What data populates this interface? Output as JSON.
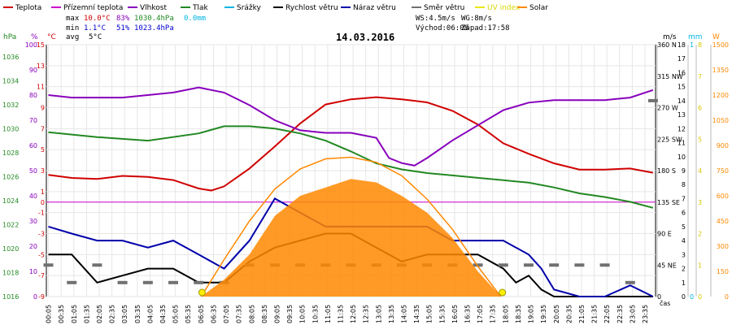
{
  "chart_data": {
    "type": "line",
    "title": "14.03.2016",
    "xlabel": "čas",
    "x_tick_labels": [
      "00:05",
      "00:35",
      "01:05",
      "01:35",
      "02:05",
      "02:35",
      "03:05",
      "03:35",
      "04:05",
      "04:35",
      "05:05",
      "05:35",
      "06:05",
      "06:35",
      "07:05",
      "07:35",
      "08:05",
      "08:35",
      "09:05",
      "09:35",
      "10:05",
      "10:35",
      "11:05",
      "11:35",
      "12:05",
      "12:35",
      "13:05",
      "13:35",
      "14:05",
      "14:35",
      "15:05",
      "15:35",
      "16:05",
      "16:35",
      "17:05",
      "17:35",
      "18:05",
      "18:35",
      "19:05",
      "19:35",
      "20:05",
      "20:35",
      "21:05",
      "21:35",
      "22:05",
      "22:35",
      "23:05",
      "23:35"
    ],
    "legend": [
      {
        "name": "Teplota",
        "color": "#d00000"
      },
      {
        "name": "Přízemní teplota",
        "color": "#cc00cc"
      },
      {
        "name": "Vlhkost",
        "color": "#8800bb"
      },
      {
        "name": "Tlak",
        "color": "#228822"
      },
      {
        "name": "Srážky",
        "color": "#00b4e0"
      },
      {
        "name": "Rychlost větru",
        "color": "#000000"
      },
      {
        "name": "Náraz větru",
        "color": "#0000aa"
      },
      {
        "name": "Směr větru",
        "color": "#707070"
      },
      {
        "name": "UV index",
        "color": "#e8e800"
      },
      {
        "name": "Solar",
        "color": "#ff8800"
      }
    ],
    "stats": {
      "max": {
        "label": "max",
        "temp": "10.0°C",
        "hum": "83%",
        "press": "1030.4hPa",
        "rain": "0.0mm"
      },
      "min": {
        "label": "min",
        "temp": "1.1°C",
        "hum": "51%",
        "press": "1023.4hPa"
      },
      "avg": {
        "label": "avg",
        "temp": "5°C"
      }
    },
    "wind_info": {
      "ws": "WS:4.5m/s",
      "wg": "WG:8m/s",
      "sunrise": "Východ:06:08",
      "sunset": "Západ:17:58"
    },
    "axes": {
      "hpa": {
        "unit": "hPa",
        "ticks": [
          "1036",
          "1034",
          "1032",
          "1030",
          "1028",
          "1026",
          "1024",
          "1022",
          "1020",
          "1018",
          "1016"
        ],
        "range": [
          1016,
          1037
        ]
      },
      "humidity": {
        "unit": "%",
        "ticks": [
          "100",
          "90",
          "80",
          "70",
          "60",
          "50",
          "40",
          "30",
          "20",
          "10",
          "0"
        ],
        "range": [
          0,
          100
        ]
      },
      "temp": {
        "unit": "°C",
        "ticks": [
          "15",
          "13",
          "11",
          "9",
          "7",
          "5",
          "3",
          "1",
          "0",
          "-1",
          "-3",
          "-5",
          "-7",
          "-9"
        ],
        "range": [
          -9,
          15
        ]
      },
      "direction": {
        "ticks": [
          "360 N",
          "315 NW",
          "270 W",
          "225 SW",
          "180 S",
          "135 SE",
          "90 E",
          "45 NE",
          "0"
        ],
        "range": [
          0,
          360
        ]
      },
      "speed": {
        "unit": "m/s",
        "ticks": [
          "18",
          "17",
          "16",
          "15",
          "14",
          "13",
          "12",
          "11",
          "10",
          "9",
          "8",
          "7",
          "6",
          "5",
          "4",
          "3",
          "2",
          "1",
          "0"
        ],
        "range": [
          0,
          18
        ]
      },
      "rain": {
        "unit": "mm",
        "ticks": [
          "1",
          "0"
        ],
        "range": [
          0,
          1
        ]
      },
      "uv": {
        "unit": "",
        "ticks": [
          "8",
          "7",
          "6",
          "5",
          "4",
          "3",
          "2",
          "1",
          "0"
        ],
        "range": [
          0,
          8
        ]
      },
      "solar": {
        "unit": "W",
        "ticks": [
          "1500",
          "1350",
          "1200",
          "1050",
          "900",
          "750",
          "600",
          "450",
          "300",
          "150",
          "0"
        ],
        "range": [
          0,
          1500
        ]
      }
    },
    "series": [
      {
        "name": "Teplota",
        "unit": "°C",
        "color": "#d00000",
        "x": [
          0.08,
          1,
          2,
          3,
          4,
          5,
          6,
          6.5,
          7,
          8,
          9,
          10,
          11,
          12,
          13,
          14,
          15,
          16,
          17,
          18,
          19,
          20,
          21,
          22,
          23,
          23.9
        ],
        "values": [
          2.6,
          2.3,
          2.2,
          2.5,
          2.4,
          2.1,
          1.3,
          1.1,
          1.5,
          3.2,
          5.3,
          7.5,
          9.3,
          9.8,
          10.0,
          9.8,
          9.5,
          8.7,
          7.4,
          5.6,
          4.6,
          3.7,
          3.1,
          3.1,
          3.2,
          2.8
        ]
      },
      {
        "name": "Vlhkost",
        "unit": "%",
        "color": "#8800bb",
        "x": [
          0.08,
          1,
          2,
          3,
          4,
          5,
          6,
          7,
          8,
          9,
          10,
          11,
          12,
          13,
          13.5,
          14,
          14.5,
          15,
          16,
          17,
          18,
          19,
          20,
          21,
          22,
          23,
          23.9
        ],
        "values": [
          80,
          79,
          79,
          79,
          80,
          81,
          83,
          81,
          76,
          70,
          66,
          65,
          65,
          63,
          55,
          53,
          52,
          55,
          62,
          68,
          74,
          77,
          78,
          78,
          78,
          79,
          82
        ]
      },
      {
        "name": "Tlak",
        "unit": "hPa",
        "color": "#228822",
        "x": [
          0.08,
          2,
          4,
          6,
          7,
          8,
          9,
          10,
          11,
          12,
          13,
          14,
          15,
          16,
          17,
          18,
          19,
          20,
          21,
          22,
          23,
          23.9
        ],
        "values": [
          1029.7,
          1029.3,
          1029.0,
          1029.6,
          1030.2,
          1030.2,
          1030.0,
          1029.6,
          1029.0,
          1028.1,
          1027.1,
          1026.6,
          1026.3,
          1026.1,
          1025.9,
          1025.7,
          1025.5,
          1025.1,
          1024.6,
          1024.3,
          1023.9,
          1023.4
        ]
      },
      {
        "name": "Rychlost větru",
        "unit": "m/s",
        "color": "#000000",
        "x": [
          0.08,
          1,
          2,
          3,
          4,
          5,
          6,
          6.5,
          7,
          8,
          9,
          10,
          11,
          12,
          13,
          14,
          15,
          16,
          17,
          18,
          18.5,
          19,
          19.5,
          20,
          20.5,
          21,
          22,
          23,
          23.9
        ],
        "values": [
          3,
          3,
          1,
          1.5,
          2,
          2,
          1,
          1,
          1,
          2.5,
          3.5,
          4,
          4.5,
          4.5,
          3.5,
          2.5,
          3,
          3,
          3,
          2,
          1,
          1.5,
          0.5,
          0,
          0,
          0,
          0,
          0,
          0
        ]
      },
      {
        "name": "Náraz větru",
        "unit": "m/s",
        "color": "#0000aa",
        "x": [
          0.08,
          1,
          2,
          3,
          4,
          5,
          6,
          7,
          8,
          9,
          10,
          11,
          12,
          13,
          14,
          15,
          16,
          17,
          18,
          19,
          19.5,
          20,
          21,
          22,
          23,
          23.9
        ],
        "values": [
          5,
          4.5,
          4,
          4,
          3.5,
          4,
          3,
          2,
          4,
          7,
          6,
          5,
          5,
          5,
          5,
          5,
          4,
          4,
          4,
          3,
          2,
          0.5,
          0,
          0,
          0.8,
          0
        ]
      },
      {
        "name": "Směr větru",
        "unit": "°",
        "color": "#707070",
        "x": [
          0.08,
          1,
          2,
          3,
          4,
          5,
          6,
          7,
          8,
          9,
          10,
          11,
          12,
          13,
          14,
          15,
          16,
          17,
          18,
          19,
          20,
          21,
          22,
          23,
          23.9
        ],
        "values": [
          45,
          20,
          45,
          20,
          20,
          20,
          20,
          20,
          45,
          45,
          45,
          45,
          45,
          45,
          45,
          45,
          45,
          45,
          45,
          45,
          45,
          45,
          45,
          20,
          280
        ]
      },
      {
        "name": "Solar",
        "unit": "W/m2",
        "color": "#ff8800",
        "area": true,
        "x": [
          6.1,
          7,
          8,
          9,
          10,
          11,
          12,
          13,
          14,
          15,
          16,
          17,
          17.9
        ],
        "values": [
          0,
          100,
          250,
          480,
          600,
          650,
          700,
          680,
          600,
          500,
          350,
          150,
          0
        ]
      },
      {
        "name": "Solar (theoretical)",
        "unit": "W/m2",
        "color": "#ff8800",
        "x": [
          6.1,
          7,
          8,
          9,
          10,
          11,
          12,
          13,
          14,
          15,
          16,
          17,
          17.9
        ],
        "values": [
          0,
          220,
          450,
          640,
          760,
          820,
          830,
          800,
          720,
          580,
          400,
          180,
          0
        ]
      }
    ],
    "ref_line_temp": 0
  }
}
